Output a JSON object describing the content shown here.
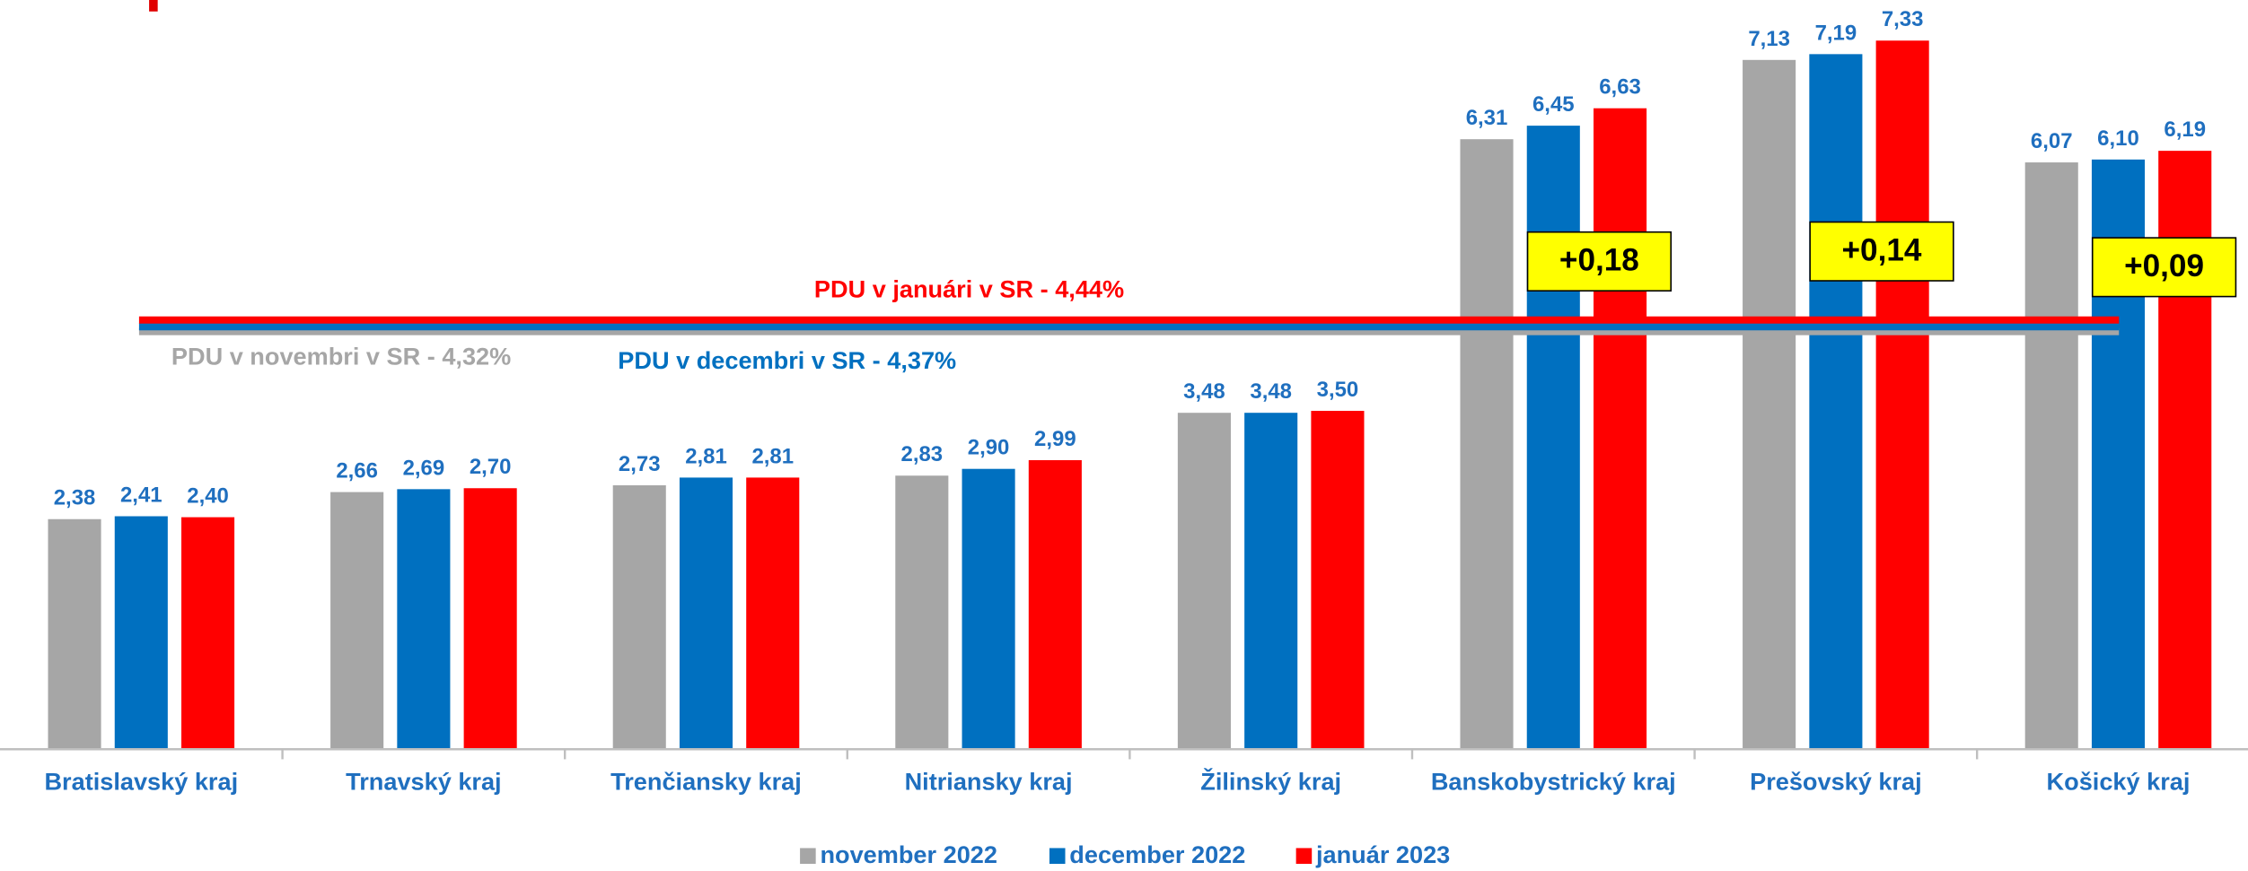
{
  "chart_data": {
    "type": "bar",
    "categories": [
      "Bratislavský kraj",
      "Trnavský kraj",
      "Trenčiansky kraj",
      "Nitriansky kraj",
      "Žilinský kraj",
      "Banskobystrický kraj",
      "Prešovský kraj",
      "Košický kraj"
    ],
    "series": [
      {
        "name": "november 2022",
        "color": "#a6a6a6",
        "values": [
          2.38,
          2.66,
          2.73,
          2.83,
          3.48,
          6.31,
          7.13,
          6.07
        ],
        "value_labels": [
          "2,38",
          "2,66",
          "2,73",
          "2,83",
          "3,48",
          "6,31",
          "7,13",
          "6,07"
        ]
      },
      {
        "name": "december 2022",
        "color": "#0070c0",
        "values": [
          2.41,
          2.69,
          2.81,
          2.9,
          3.48,
          6.45,
          7.19,
          6.1
        ],
        "value_labels": [
          "2,41",
          "2,69",
          "2,81",
          "2,90",
          "3,48",
          "6,45",
          "7,19",
          "6,10"
        ]
      },
      {
        "name": "január 2023",
        "color": "#ff0000",
        "values": [
          2.4,
          2.7,
          2.81,
          2.99,
          3.5,
          6.63,
          7.33,
          6.19
        ],
        "value_labels": [
          "2,40",
          "2,70",
          "2,81",
          "2,99",
          "3,50",
          "6,63",
          "7,33",
          "6,19"
        ]
      }
    ],
    "ylim": [
      0,
      7.75
    ],
    "reference_lines": [
      {
        "value": 4.32,
        "label": "PDU v novembri v SR - 4,32%",
        "color": "#a6a6a6"
      },
      {
        "value": 4.37,
        "label": "PDU v decembri v SR - 4,37%",
        "color": "#0070c0"
      },
      {
        "value": 4.44,
        "label": "PDU v januári v SR - 4,44%",
        "color": "#ff0000"
      }
    ],
    "annotations": [
      {
        "category": "Banskobystrický kraj",
        "label": "+0,18"
      },
      {
        "category": "Prešovský kraj",
        "label": "+0,14"
      },
      {
        "category": "Košický kraj",
        "label": "+0,09"
      }
    ],
    "legend": "bottom"
  }
}
